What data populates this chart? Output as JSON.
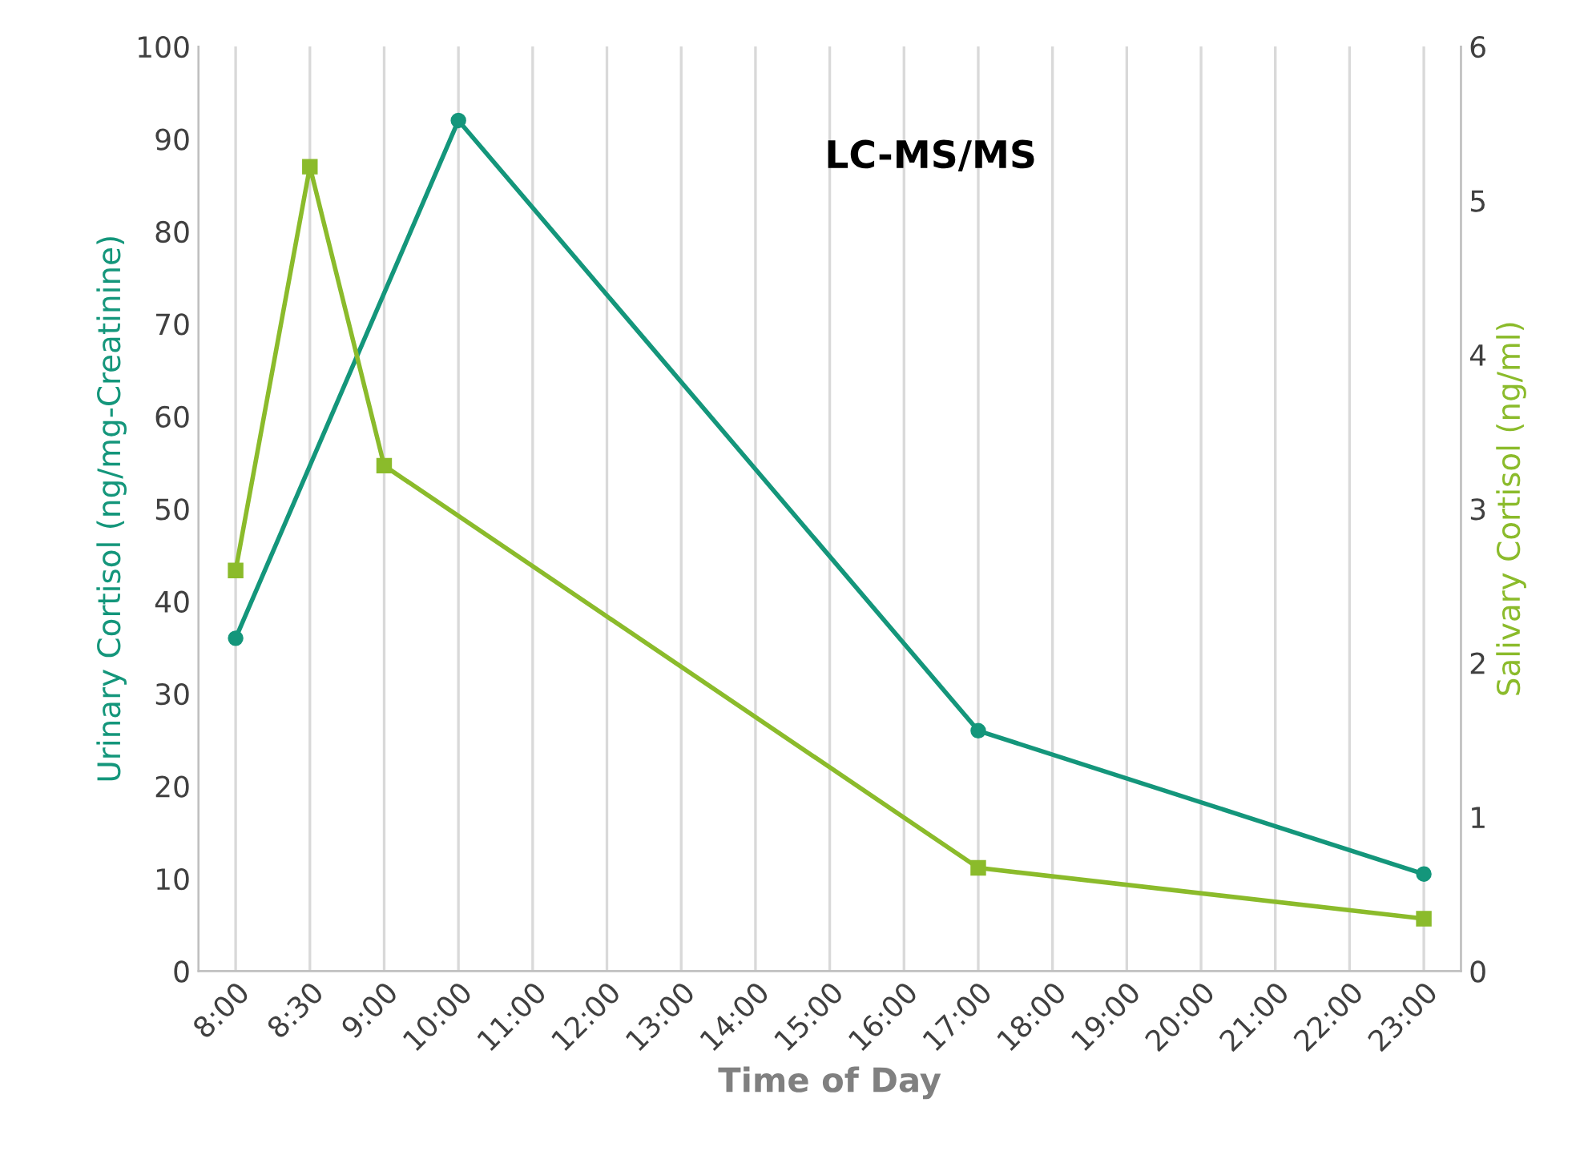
{
  "chart_data": {
    "type": "line",
    "xlabel": "Time of Day",
    "ylabel": "Urinary Cortisol (ng/mg-Creatinine)",
    "y2label": "Salivary Cortisol (ng/ml)",
    "annotations": [
      "LC-MS/MS"
    ],
    "categories": [
      "8:00",
      "8:30",
      "9:00",
      "10:00",
      "11:00",
      "12:00",
      "13:00",
      "14:00",
      "15:00",
      "16:00",
      "17:00",
      "18:00",
      "19:00",
      "20:00",
      "21:00",
      "22:00",
      "23:00"
    ],
    "series": [
      {
        "color": "#14967b",
        "marker": "circle",
        "values": [
          36,
          null,
          null,
          92,
          null,
          null,
          null,
          null,
          null,
          null,
          26,
          null,
          null,
          null,
          null,
          null,
          10.5
        ]
      },
      {
        "color": "#8bbb2b",
        "marker": "square",
        "axis": "y2",
        "values": [
          2.6,
          5.22,
          3.28,
          null,
          null,
          null,
          null,
          null,
          null,
          null,
          0.67,
          null,
          null,
          null,
          null,
          null,
          0.34
        ]
      }
    ],
    "ylim": [
      0,
      100
    ],
    "yticks": [
      0,
      10,
      20,
      30,
      40,
      50,
      60,
      70,
      80,
      90,
      100
    ],
    "y2lim": [
      0,
      6
    ],
    "y2ticks": [
      0,
      1,
      2,
      3,
      4,
      5,
      6
    ],
    "grid": "x",
    "legend": false,
    "line_style": "solid"
  }
}
